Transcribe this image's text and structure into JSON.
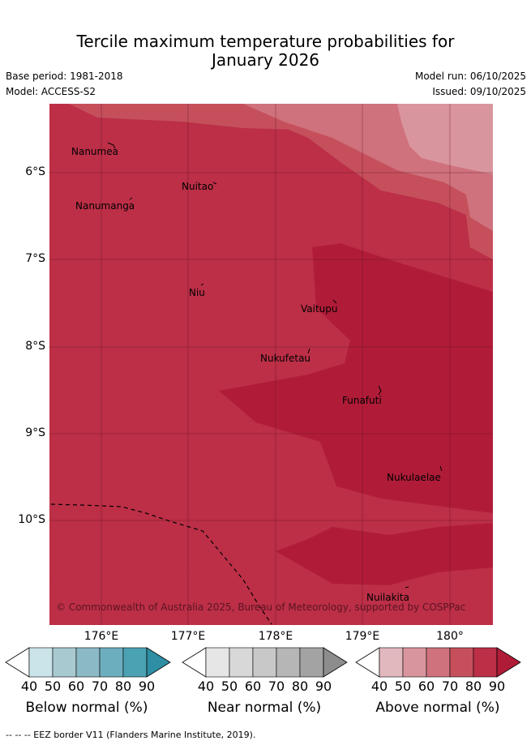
{
  "header": {
    "title_line1": "Tercile maximum temperature probabilities for",
    "title_line2": "January 2026",
    "base_period": "Base period: 1981-2018",
    "model": "Model: ACCESS-S2",
    "model_run": "Model run: 06/10/2025",
    "issued": "Issued: 09/10/2025"
  },
  "map": {
    "lat_labels": [
      "6°S",
      "7°S",
      "8°S",
      "9°S",
      "10°S"
    ],
    "lon_labels": [
      "176°E",
      "177°E",
      "178°E",
      "179°E",
      "180°"
    ],
    "places": [
      "Nanumea",
      "Nuitao",
      "Nanumanga",
      "Niu",
      "Vaitupu",
      "Nukufetau",
      "Funafuti",
      "Nukulaelae",
      "Nuilakita"
    ],
    "copyright": "© Commonwealth of Australia 2025, Bureau of Meteorology, supported by COSPPac",
    "colors": {
      "above_40": "#e2b8bf",
      "above_50": "#d9959e",
      "above_60": "#cf727d",
      "above_70": "#c5505c",
      "above_80": "#bc2f47",
      "above_90": "#b01c38"
    }
  },
  "legend": {
    "ticks": [
      "40",
      "50",
      "60",
      "70",
      "80",
      "90"
    ],
    "below": {
      "label": "Below normal (%)",
      "colors": [
        "#cae4ea",
        "#a9c9d0",
        "#8cb9c6",
        "#6daebe",
        "#4aa2b3",
        "#2e8ea3"
      ]
    },
    "near": {
      "label": "Near normal (%)",
      "colors": [
        "#e6e6e6",
        "#d8d8d8",
        "#c8c8c8",
        "#b6b6b6",
        "#a3a3a3",
        "#8d8d8d"
      ]
    },
    "above": {
      "label": "Above normal (%)",
      "colors": [
        "#e2b8bf",
        "#d9959e",
        "#cf727d",
        "#c5505c",
        "#bc2f47",
        "#b01c38"
      ]
    }
  },
  "footer": {
    "eez_note": "--  --  -- EEZ border V11 (Flanders Marine Institute, 2019)."
  }
}
